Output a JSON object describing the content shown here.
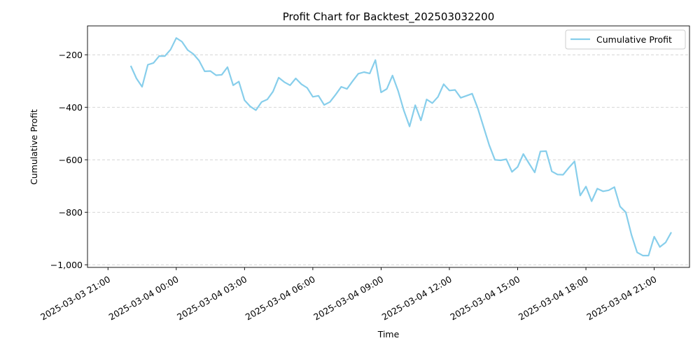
{
  "chart_data": {
    "type": "line",
    "title": "Profit Chart for Backtest_202503032200",
    "xlabel": "Time",
    "ylabel": "Cumulative Profit",
    "grid": "y-dashed",
    "legend_position": "top-right",
    "ylim": [
      -1010,
      -90
    ],
    "xlim": [
      "2025-03-03 20:06",
      "2025-03-04 22:33"
    ],
    "y_ticks": [
      -200,
      -400,
      -600,
      -800,
      -1000
    ],
    "y_tick_labels": [
      "−200",
      "−400",
      "−600",
      "−800",
      "−1,000"
    ],
    "x_ticks": [
      "2025-03-03 21:00",
      "2025-03-04 00:00",
      "2025-03-04 03:00",
      "2025-03-04 06:00",
      "2025-03-04 09:00",
      "2025-03-04 12:00",
      "2025-03-04 15:00",
      "2025-03-04 18:00",
      "2025-03-04 21:00"
    ],
    "x_tick_labels": [
      "2025-03-03 21:00",
      "2025-03-04 00:00",
      "2025-03-04 03:00",
      "2025-03-04 06:00",
      "2025-03-04 09:00",
      "2025-03-04 12:00",
      "2025-03-04 15:00",
      "2025-03-04 18:00",
      "2025-03-04 21:00"
    ],
    "series": [
      {
        "name": "Cumulative Profit",
        "color": "#87ceeb",
        "points": [
          [
            "2025-03-03 22:00",
            -242
          ],
          [
            "2025-03-03 22:15",
            -290
          ],
          [
            "2025-03-03 22:30",
            -322
          ],
          [
            "2025-03-03 22:45",
            -238
          ],
          [
            "2025-03-03 23:00",
            -231
          ],
          [
            "2025-03-03 23:15",
            -205
          ],
          [
            "2025-03-03 23:30",
            -205
          ],
          [
            "2025-03-03 23:45",
            -180
          ],
          [
            "2025-03-04 00:00",
            -136
          ],
          [
            "2025-03-04 00:15",
            -150
          ],
          [
            "2025-03-04 00:30",
            -182
          ],
          [
            "2025-03-04 00:45",
            -197
          ],
          [
            "2025-03-04 01:00",
            -222
          ],
          [
            "2025-03-04 01:15",
            -263
          ],
          [
            "2025-03-04 01:30",
            -262
          ],
          [
            "2025-03-04 01:45",
            -278
          ],
          [
            "2025-03-04 02:00",
            -276
          ],
          [
            "2025-03-04 02:15",
            -247
          ],
          [
            "2025-03-04 02:30",
            -316
          ],
          [
            "2025-03-04 02:45",
            -302
          ],
          [
            "2025-03-04 03:00",
            -373
          ],
          [
            "2025-03-04 03:15",
            -397
          ],
          [
            "2025-03-04 03:30",
            -411
          ],
          [
            "2025-03-04 03:45",
            -380
          ],
          [
            "2025-03-04 04:00",
            -370
          ],
          [
            "2025-03-04 04:15",
            -340
          ],
          [
            "2025-03-04 04:30",
            -287
          ],
          [
            "2025-03-04 04:45",
            -304
          ],
          [
            "2025-03-04 05:00",
            -316
          ],
          [
            "2025-03-04 05:15",
            -290
          ],
          [
            "2025-03-04 05:30",
            -312
          ],
          [
            "2025-03-04 05:45",
            -326
          ],
          [
            "2025-03-04 06:00",
            -360
          ],
          [
            "2025-03-04 06:15",
            -356
          ],
          [
            "2025-03-04 06:30",
            -391
          ],
          [
            "2025-03-04 06:45",
            -380
          ],
          [
            "2025-03-04 07:00",
            -352
          ],
          [
            "2025-03-04 07:15",
            -322
          ],
          [
            "2025-03-04 07:30",
            -330
          ],
          [
            "2025-03-04 07:45",
            -300
          ],
          [
            "2025-03-04 08:00",
            -272
          ],
          [
            "2025-03-04 08:15",
            -266
          ],
          [
            "2025-03-04 08:30",
            -271
          ],
          [
            "2025-03-04 08:45",
            -220
          ],
          [
            "2025-03-04 09:00",
            -343
          ],
          [
            "2025-03-04 09:15",
            -330
          ],
          [
            "2025-03-04 09:30",
            -279
          ],
          [
            "2025-03-04 09:45",
            -338
          ],
          [
            "2025-03-04 10:00",
            -412
          ],
          [
            "2025-03-04 10:15",
            -473
          ],
          [
            "2025-03-04 10:30",
            -392
          ],
          [
            "2025-03-04 10:45",
            -450
          ],
          [
            "2025-03-04 11:00",
            -370
          ],
          [
            "2025-03-04 11:15",
            -384
          ],
          [
            "2025-03-04 11:30",
            -360
          ],
          [
            "2025-03-04 11:45",
            -312
          ],
          [
            "2025-03-04 12:00",
            -336
          ],
          [
            "2025-03-04 12:15",
            -334
          ],
          [
            "2025-03-04 12:30",
            -364
          ],
          [
            "2025-03-04 12:45",
            -356
          ],
          [
            "2025-03-04 13:00",
            -348
          ],
          [
            "2025-03-04 13:15",
            -404
          ],
          [
            "2025-03-04 13:30",
            -474
          ],
          [
            "2025-03-04 13:45",
            -544
          ],
          [
            "2025-03-04 14:00",
            -600
          ],
          [
            "2025-03-04 14:15",
            -602
          ],
          [
            "2025-03-04 14:30",
            -598
          ],
          [
            "2025-03-04 14:45",
            -646
          ],
          [
            "2025-03-04 15:00",
            -627
          ],
          [
            "2025-03-04 15:15",
            -578
          ],
          [
            "2025-03-04 15:30",
            -614
          ],
          [
            "2025-03-04 15:45",
            -648
          ],
          [
            "2025-03-04 16:00",
            -568
          ],
          [
            "2025-03-04 16:15",
            -567
          ],
          [
            "2025-03-04 16:30",
            -644
          ],
          [
            "2025-03-04 16:45",
            -656
          ],
          [
            "2025-03-04 17:00",
            -657
          ],
          [
            "2025-03-04 17:15",
            -630
          ],
          [
            "2025-03-04 17:30",
            -606
          ],
          [
            "2025-03-04 17:45",
            -736
          ],
          [
            "2025-03-04 18:00",
            -702
          ],
          [
            "2025-03-04 18:15",
            -758
          ],
          [
            "2025-03-04 18:30",
            -710
          ],
          [
            "2025-03-04 18:45",
            -720
          ],
          [
            "2025-03-04 19:00",
            -716
          ],
          [
            "2025-03-04 19:15",
            -704
          ],
          [
            "2025-03-04 19:30",
            -778
          ],
          [
            "2025-03-04 19:45",
            -800
          ],
          [
            "2025-03-04 20:00",
            -886
          ],
          [
            "2025-03-04 20:15",
            -953
          ],
          [
            "2025-03-04 20:30",
            -965
          ],
          [
            "2025-03-04 20:45",
            -965
          ],
          [
            "2025-03-04 21:00",
            -893
          ],
          [
            "2025-03-04 21:15",
            -932
          ],
          [
            "2025-03-04 21:30",
            -915
          ],
          [
            "2025-03-04 21:45",
            -876
          ]
        ]
      }
    ]
  }
}
